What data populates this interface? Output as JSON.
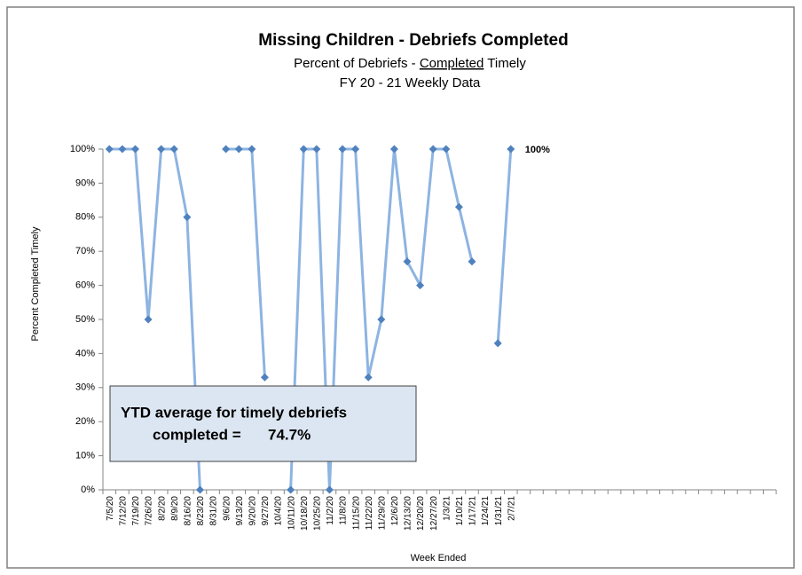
{
  "chart_data": {
    "type": "line",
    "title": "Missing Children - Debriefs Completed",
    "subtitle": [
      "Percent of Debriefs - ",
      "Completed",
      " Timely"
    ],
    "subtitle2": "FY 20 - 21  Weekly Data",
    "y_label": "Percent Completed Timely",
    "x_label": "Week Ended",
    "categories": [
      "7/5/20",
      "7/12/20",
      "7/19/20",
      "7/26/20",
      "8/2/20",
      "8/9/20",
      "8/16/20",
      "8/23/20",
      "8/31/20",
      "9/6/20",
      "9/13/20",
      "9/20/20",
      "9/27/20",
      "10/4/20",
      "10/11/20",
      "10/18/20",
      "10/25/20",
      "11/2/20",
      "11/8/20",
      "11/15/20",
      "11/22/20",
      "11/29/20",
      "12/6/20",
      "12/13/20",
      "12/20/20",
      "12/27/20",
      "1/3/21",
      "1/10/21",
      "1/17/21",
      "1/24/21",
      "1/31/21",
      "2/7/21",
      null,
      null,
      null,
      null,
      null,
      null,
      null,
      null,
      null,
      null,
      null,
      null,
      null,
      null,
      null,
      null,
      null,
      null,
      null,
      null
    ],
    "series": [
      {
        "name": "Percent Completed Timely",
        "color": "#8db4e2",
        "marker_color": "#4f81bd",
        "values": [
          100,
          100,
          100,
          50,
          100,
          100,
          80,
          0,
          null,
          100,
          100,
          100,
          33,
          null,
          0,
          100,
          100,
          0,
          100,
          100,
          33,
          50,
          100,
          67,
          60,
          100,
          100,
          83,
          67,
          null,
          43,
          100,
          null,
          null,
          null,
          null,
          null,
          null,
          null,
          null,
          null,
          null,
          null,
          null,
          null,
          null,
          null,
          null,
          null,
          null,
          null,
          null
        ],
        "value_labels": [
          null,
          null,
          null,
          null,
          null,
          null,
          null,
          null,
          null,
          null,
          null,
          null,
          null,
          null,
          null,
          null,
          null,
          null,
          null,
          null,
          null,
          null,
          null,
          null,
          null,
          null,
          null,
          null,
          null,
          null,
          null,
          "100%",
          null,
          null,
          null,
          null,
          null,
          null,
          null,
          null,
          null,
          null,
          null,
          null,
          null,
          null,
          null,
          null,
          null,
          null,
          null,
          null
        ]
      }
    ],
    "ylim": [
      0,
      100
    ],
    "yticks": [
      {
        "value": 0,
        "label": "0%"
      },
      {
        "value": 10,
        "label": "10%"
      },
      {
        "value": 20,
        "label": "20%"
      },
      {
        "value": 30,
        "label": "30%"
      },
      {
        "value": 40,
        "label": "40%"
      },
      {
        "value": 50,
        "label": "50%"
      },
      {
        "value": 60,
        "label": "60%"
      },
      {
        "value": 70,
        "label": "70%"
      },
      {
        "value": 80,
        "label": "80%"
      },
      {
        "value": 90,
        "label": "90%"
      },
      {
        "value": 100,
        "label": "100%"
      }
    ],
    "annotation": [
      "YTD average for timely debriefs",
      "completed =",
      "74.7%"
    ]
  }
}
